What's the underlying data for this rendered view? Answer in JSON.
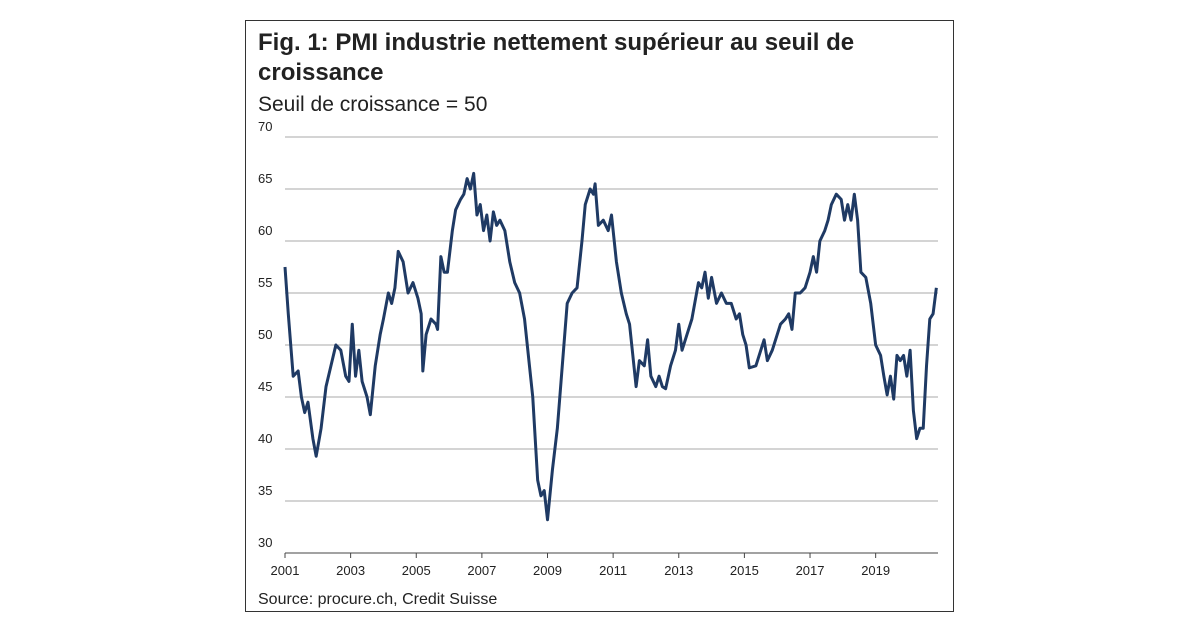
{
  "chart_data": {
    "type": "line",
    "title": "Fig. 1: PMI industrie nettement supérieur au seuil de croissance",
    "subtitle": "Seuil de croissance = 50",
    "source": "Source: procure.ch, Credit Suisse",
    "x": [
      2001.0,
      2001.1,
      2001.25,
      2001.4,
      2001.5,
      2001.6,
      2001.7,
      2001.85,
      2001.95,
      2002.1,
      2002.25,
      2002.4,
      2002.55,
      2002.7,
      2002.85,
      2002.95,
      2003.05,
      2003.15,
      2003.25,
      2003.35,
      2003.5,
      2003.6,
      2003.75,
      2003.9,
      2004.0,
      2004.15,
      2004.25,
      2004.35,
      2004.45,
      2004.6,
      2004.75,
      2004.9,
      2005.05,
      2005.15,
      2005.2,
      2005.3,
      2005.45,
      2005.6,
      2005.65,
      2005.75,
      2005.85,
      2005.95,
      2006.1,
      2006.2,
      2006.35,
      2006.45,
      2006.55,
      2006.65,
      2006.75,
      2006.85,
      2006.95,
      2007.05,
      2007.15,
      2007.25,
      2007.35,
      2007.45,
      2007.55,
      2007.7,
      2007.85,
      2008.0,
      2008.15,
      2008.3,
      2008.45,
      2008.55,
      2008.7,
      2008.8,
      2008.9,
      2009.0,
      2009.15,
      2009.3,
      2009.45,
      2009.6,
      2009.75,
      2009.9,
      2010.05,
      2010.15,
      2010.3,
      2010.4,
      2010.45,
      2010.55,
      2010.7,
      2010.85,
      2010.95,
      2011.1,
      2011.25,
      2011.4,
      2011.5,
      2011.6,
      2011.7,
      2011.8,
      2011.95,
      2012.05,
      2012.15,
      2012.3,
      2012.4,
      2012.5,
      2012.6,
      2012.75,
      2012.9,
      2013.0,
      2013.1,
      2013.25,
      2013.4,
      2013.6,
      2013.7,
      2013.8,
      2013.9,
      2014.0,
      2014.15,
      2014.3,
      2014.45,
      2014.6,
      2014.75,
      2014.85,
      2014.95,
      2015.05,
      2015.15,
      2015.35,
      2015.5,
      2015.6,
      2015.7,
      2015.85,
      2016.0,
      2016.1,
      2016.25,
      2016.35,
      2016.45,
      2016.55,
      2016.7,
      2016.85,
      2017.0,
      2017.1,
      2017.2,
      2017.3,
      2017.45,
      2017.55,
      2017.65,
      2017.8,
      2017.95,
      2018.05,
      2018.15,
      2018.25,
      2018.35,
      2018.45,
      2018.55,
      2018.7,
      2018.85,
      2019.0,
      2019.15,
      2019.25,
      2019.35,
      2019.45,
      2019.55,
      2019.65,
      2019.75,
      2019.85,
      2019.95,
      2020.05,
      2020.15,
      2020.25,
      2020.35,
      2020.45,
      2020.55,
      2020.65,
      2020.75,
      2020.85
    ],
    "series": [
      {
        "color": "#1f3a64",
        "values": [
          57.5,
          53,
          47,
          47.5,
          45,
          43.5,
          44.5,
          41,
          39.3,
          42,
          46,
          48,
          50,
          49.5,
          47,
          46.5,
          52,
          47,
          49.5,
          46.5,
          45,
          43.3,
          48,
          51,
          52.5,
          55,
          54,
          55.5,
          59,
          58,
          55,
          56,
          54.5,
          53,
          47.5,
          51,
          52.5,
          52,
          51.5,
          58.5,
          57,
          57,
          61,
          63,
          64,
          64.5,
          66,
          65,
          66.5,
          62.5,
          63.5,
          61,
          62.5,
          60,
          62.8,
          61.5,
          62,
          61,
          58,
          56,
          55,
          52.5,
          48,
          45,
          37,
          35.5,
          36,
          33.2,
          38,
          42,
          48,
          54,
          55,
          55.5,
          60,
          63.5,
          65,
          64.5,
          65.5,
          61.5,
          62,
          61,
          62.5,
          58,
          55,
          53,
          52,
          49,
          46,
          48.5,
          48,
          50.5,
          47,
          46,
          47,
          46,
          45.8,
          48,
          49.5,
          52,
          49.5,
          51,
          52.5,
          56,
          55.5,
          57,
          54.5,
          56.5,
          54,
          55,
          54,
          54,
          52.5,
          53,
          51,
          50,
          47.8,
          48,
          49.5,
          50.5,
          48.5,
          49.5,
          51,
          52,
          52.5,
          53,
          51.5,
          55,
          55,
          55.5,
          57,
          58.5,
          57,
          60,
          61,
          62,
          63.5,
          64.5,
          64,
          62,
          63.5,
          62,
          64.5,
          62,
          57,
          56.5,
          54,
          50,
          49,
          47,
          45.2,
          47,
          44.8,
          49,
          48.5,
          49,
          47,
          49.5,
          43.7,
          41,
          42,
          42,
          48,
          52.5,
          53,
          55.5
        ]
      }
    ],
    "xlim": [
      2001,
      2020.9
    ],
    "xticks": [
      2001,
      2003,
      2005,
      2007,
      2009,
      2011,
      2013,
      2015,
      2017,
      2019
    ],
    "ylim": [
      30,
      70
    ],
    "yticks": [
      30,
      35,
      40,
      45,
      50,
      55,
      60,
      65,
      70
    ],
    "grid": true
  }
}
